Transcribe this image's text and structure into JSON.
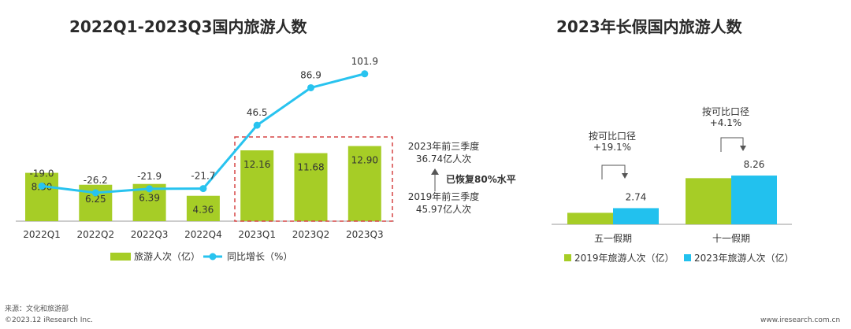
{
  "left_title": "2022Q1-2023Q3国内旅游人数",
  "right_title": "2023年长假国内旅游人数",
  "source": "来源：文化和旅游部",
  "copyright": "©2023.12 iResearch Inc.",
  "website": "www.iresearch.com.cn",
  "colors": {
    "bar_green": "#a6cd26",
    "line_blue": "#28c3ef",
    "bar_blue": "#22c1ee",
    "dash_red": "#d64545"
  },
  "annotation": {
    "top_line1": "2023年前三季度",
    "top_line2": "36.74亿人次",
    "middle": "已恢复80%水平",
    "bottom_line1": "2019年前三季度",
    "bottom_line2": "45.97亿人次"
  },
  "chart_data": [
    {
      "type": "bar",
      "categories": [
        "2022Q1",
        "2022Q2",
        "2022Q3",
        "2022Q4",
        "2023Q1",
        "2023Q2",
        "2023Q3"
      ],
      "series": [
        {
          "name": "旅游人次（亿）",
          "type": "bar",
          "values": [
            8.3,
            6.25,
            6.39,
            4.36,
            12.16,
            11.68,
            12.9
          ],
          "labels": [
            "8.30",
            "6.25",
            "6.39",
            "4.36",
            "12.16",
            "11.68",
            "12.90"
          ]
        },
        {
          "name": "同比增长（%）",
          "type": "line",
          "values": [
            -19.0,
            -26.2,
            -21.9,
            -21.7,
            46.5,
            86.9,
            101.9
          ],
          "labels": [
            "-19.0",
            "-26.2",
            "-21.9",
            "-21.7",
            "46.5",
            "86.9",
            "101.9"
          ]
        }
      ],
      "legend": "bottom"
    },
    {
      "type": "bar",
      "categories": [
        "五一假期",
        "十一假期"
      ],
      "series": [
        {
          "name": "2019年旅游人次（亿）",
          "values": [
            1.95,
            7.82
          ]
        },
        {
          "name": "2023年旅游人次（亿）",
          "values": [
            2.74,
            8.26
          ],
          "labels": [
            "2.74",
            "8.26"
          ]
        }
      ],
      "annotations": [
        {
          "line1": "按可比口径",
          "line2": "+19.1%"
        },
        {
          "line1": "按可比口径",
          "line2": "+4.1%"
        }
      ],
      "legend": "bottom"
    }
  ]
}
